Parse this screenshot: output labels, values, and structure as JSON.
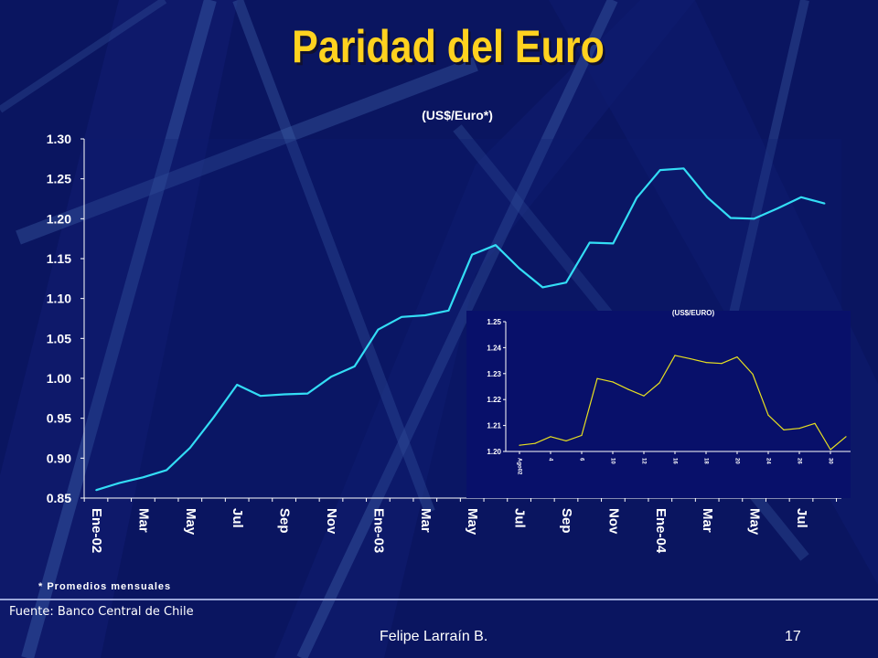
{
  "slide": {
    "title": "Paridad del Euro",
    "footnote": "* Promedios mensuales",
    "source": "Fuente: Banco Central de Chile",
    "author": "Felipe Larraín B.",
    "page_number": "17"
  },
  "colors": {
    "background": "#0a1560",
    "title": "#ffd21f",
    "main_line": "#33ddf5",
    "inset_line": "#e8e020",
    "axis_text": "#ffffff"
  },
  "chart_data": [
    {
      "type": "line",
      "title": "(US$/Euro*)",
      "xlabel": "",
      "ylabel": "",
      "ylim": [
        0.85,
        1.3
      ],
      "y_ticks": [
        "1.30",
        "1.25",
        "1.20",
        "1.15",
        "1.10",
        "1.05",
        "1.00",
        "0.95",
        "0.90",
        "0.85"
      ],
      "x_tick_labels": [
        "Ene-02",
        "Mar",
        "May",
        "Jul",
        "Sep",
        "Nov",
        "Ene-03",
        "Mar",
        "May",
        "Jul",
        "Sep",
        "Nov",
        "Ene-04",
        "Mar",
        "May",
        "Jul"
      ],
      "x_tick_every": 2,
      "grid": false,
      "legend": "none",
      "series": [
        {
          "values": [
            0.86,
            0.869,
            0.876,
            0.885,
            0.913,
            0.951,
            0.992,
            0.978,
            0.98,
            0.981,
            1.002,
            1.015,
            1.061,
            1.077,
            1.079,
            1.085,
            1.155,
            1.167,
            1.138,
            1.114,
            1.12,
            1.17,
            1.169,
            1.226,
            1.261,
            1.263,
            1.227,
            1.201,
            1.2,
            1.213,
            1.227,
            1.219
          ]
        }
      ]
    },
    {
      "type": "line",
      "title": "(US$/EURO)",
      "xlabel": "",
      "ylabel": "",
      "ylim": [
        1.2,
        1.25
      ],
      "y_ticks": [
        "1.25",
        "1.24",
        "1.23",
        "1.22",
        "1.21",
        "1.20"
      ],
      "x_tick_labels": [
        "Ago02",
        "4",
        "6",
        "10",
        "12",
        "16",
        "18",
        "20",
        "24",
        "26",
        "30"
      ],
      "grid": false,
      "legend": "none",
      "series": [
        {
          "values": [
            1.2024,
            1.2031,
            1.2057,
            1.2041,
            1.2062,
            1.2281,
            1.2268,
            1.2239,
            1.2214,
            1.2264,
            1.237,
            1.2357,
            1.2343,
            1.2339,
            1.2364,
            1.2298,
            1.214,
            1.2083,
            1.2089,
            1.2108,
            1.2007,
            1.2057
          ]
        }
      ]
    }
  ]
}
